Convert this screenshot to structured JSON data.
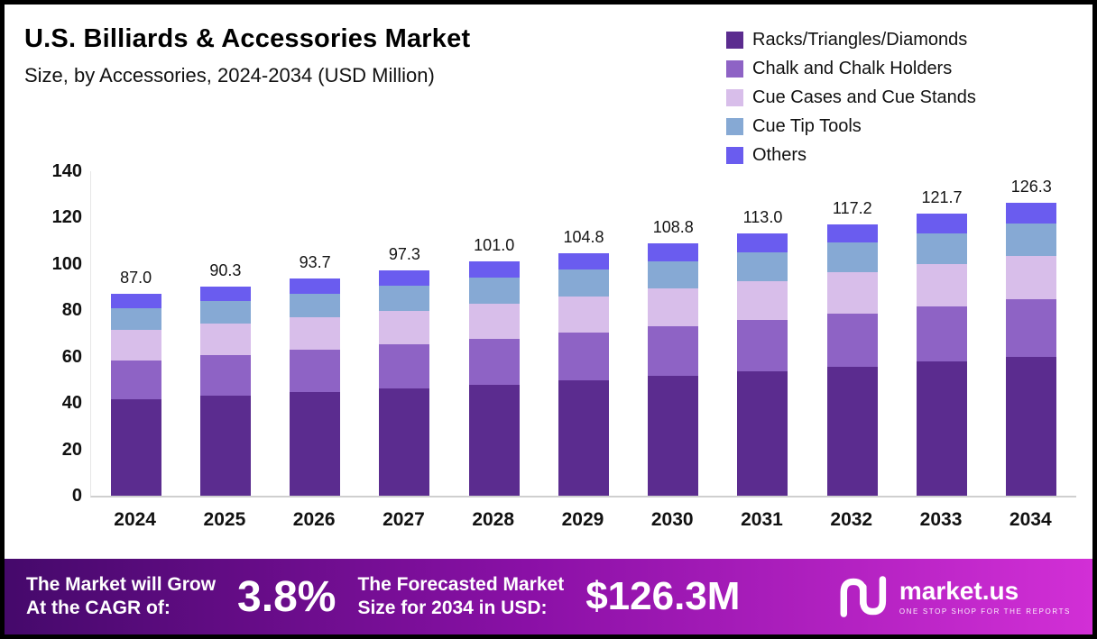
{
  "header": {
    "title": "U.S. Billiards & Accessories Market",
    "subtitle": "Size, by Accessories, 2024-2034 (USD Million)"
  },
  "chart_data": {
    "type": "bar",
    "stacked": true,
    "title": "U.S. Billiards & Accessories Market Size, by Accessories, 2024-2034 (USD Million)",
    "categories": [
      "2024",
      "2025",
      "2026",
      "2027",
      "2028",
      "2029",
      "2030",
      "2031",
      "2032",
      "2033",
      "2034"
    ],
    "series": [
      {
        "name": "Racks/Triangles/Diamonds",
        "color": "#5B2C8F",
        "values": [
          41.5,
          43.0,
          44.6,
          46.3,
          48.0,
          49.8,
          51.7,
          53.7,
          55.7,
          57.8,
          60.0
        ]
      },
      {
        "name": "Chalk and Chalk Holders",
        "color": "#8E63C5",
        "values": [
          17.0,
          17.7,
          18.3,
          19.0,
          19.8,
          20.5,
          21.3,
          22.1,
          23.0,
          23.8,
          24.7
        ]
      },
      {
        "name": "Cue Cases and Cue Stands",
        "color": "#D8BEEA",
        "values": [
          13.0,
          13.5,
          14.0,
          14.6,
          15.1,
          15.7,
          16.3,
          16.9,
          17.6,
          18.2,
          18.9
        ]
      },
      {
        "name": "Cue Tip Tools",
        "color": "#86A9D4",
        "values": [
          9.5,
          9.9,
          10.3,
          10.7,
          11.1,
          11.5,
          12.0,
          12.4,
          12.9,
          13.4,
          13.9
        ]
      },
      {
        "name": "Others",
        "color": "#6A5CEF",
        "values": [
          6.0,
          6.2,
          6.5,
          6.7,
          7.0,
          7.3,
          7.5,
          7.9,
          8.0,
          8.5,
          8.8
        ]
      }
    ],
    "totals": [
      87.0,
      90.3,
      93.7,
      97.3,
      101.0,
      104.8,
      108.8,
      113.0,
      117.2,
      121.7,
      126.3
    ],
    "total_labels": [
      "87.0",
      "90.3",
      "93.7",
      "97.3",
      "101.0",
      "104.8",
      "108.8",
      "113.0",
      "117.2",
      "121.7",
      "126.3"
    ],
    "xlabel": "",
    "ylabel": "",
    "ylim": [
      0,
      140
    ],
    "yticks": [
      0,
      20,
      40,
      60,
      80,
      100,
      120,
      140
    ],
    "grid": false,
    "legend_position": "top-right"
  },
  "footer": {
    "cagr_label_line1": "The Market will Grow",
    "cagr_label_line2": "At the CAGR of:",
    "cagr_value": "3.8%",
    "forecast_label_line1": "The Forecasted Market",
    "forecast_label_line2": "Size for 2034 in USD:",
    "forecast_value": "$126.3M",
    "brand": {
      "name": "market.us",
      "tagline": "ONE STOP SHOP FOR THE REPORTS"
    }
  },
  "colors": {
    "footer_gradient_left": "#45096B",
    "footer_gradient_mid": "#8A10A6",
    "footer_gradient_right": "#D22FD6",
    "axis_line": "#CFCFCF",
    "text": "#111111"
  }
}
